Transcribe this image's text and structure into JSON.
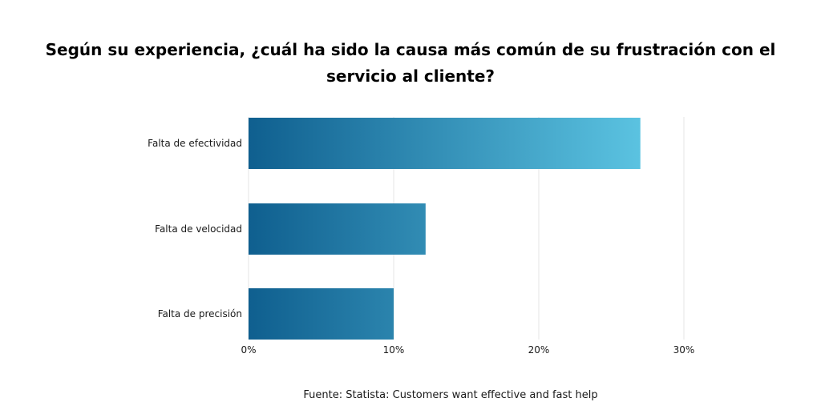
{
  "title_lines": [
    "Según su experiencia, ¿cuál ha sido la causa más común de su frustración con el",
    "servicio al cliente?"
  ],
  "source": "Fuente: Statista: Customers want effective and fast help",
  "colors": {
    "bar_gradient_start": "#0f5f8f",
    "bar_gradient_end": "#5bc3e1",
    "grid": "#e6e6e6",
    "text": "#1a1a1a"
  },
  "chart_data": {
    "type": "bar",
    "orientation": "horizontal",
    "categories": [
      "Falta de efectividad",
      "Falta de velocidad",
      "Falta de precisión"
    ],
    "values": [
      27,
      12.2,
      10
    ],
    "xlim": [
      0,
      30
    ],
    "xticks": [
      0,
      10,
      20,
      30
    ],
    "tick_labels": [
      "0%",
      "10%",
      "20%",
      "30%"
    ],
    "grid": "vertical",
    "legend": "none"
  }
}
